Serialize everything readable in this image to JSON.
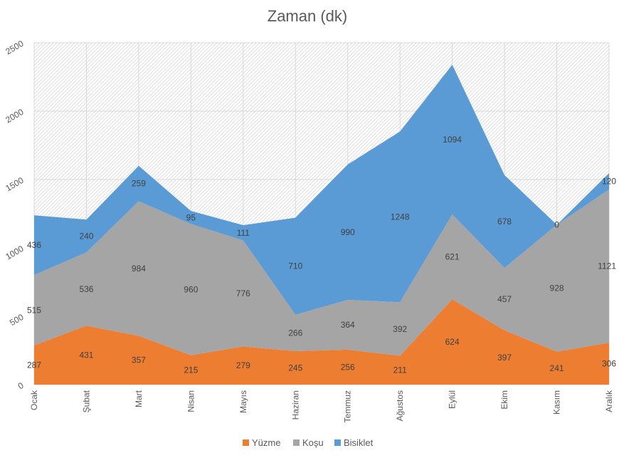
{
  "chart_data": {
    "type": "area",
    "stacked": true,
    "title": "Zaman (dk)",
    "categories": [
      "Ocak",
      "Şubat",
      "Mart",
      "Nisan",
      "Mayıs",
      "Haziran",
      "Temmuz",
      "Ağustos",
      "Eylül",
      "Ekim",
      "Kasım",
      "Aralık"
    ],
    "series": [
      {
        "name": "Yüzme",
        "color": "#ED7D31",
        "values": [
          287,
          431,
          357,
          215,
          279,
          245,
          256,
          211,
          624,
          397,
          241,
          306
        ]
      },
      {
        "name": "Koşu",
        "color": "#A5A5A5",
        "values": [
          515,
          536,
          984,
          960,
          776,
          266,
          364,
          392,
          621,
          457,
          928,
          1121
        ]
      },
      {
        "name": "Bisiklet",
        "color": "#5B9BD5",
        "values": [
          436,
          240,
          259,
          95,
          111,
          710,
          990,
          1248,
          1094,
          678,
          0,
          120
        ]
      }
    ],
    "ylim": [
      0,
      2500
    ],
    "yticks": [
      0,
      500,
      1000,
      1500,
      2000,
      2500
    ],
    "xlabel": "",
    "ylabel": "",
    "grid": true,
    "plot_background": "hatched",
    "data_labels": true,
    "legend": "bottom"
  }
}
